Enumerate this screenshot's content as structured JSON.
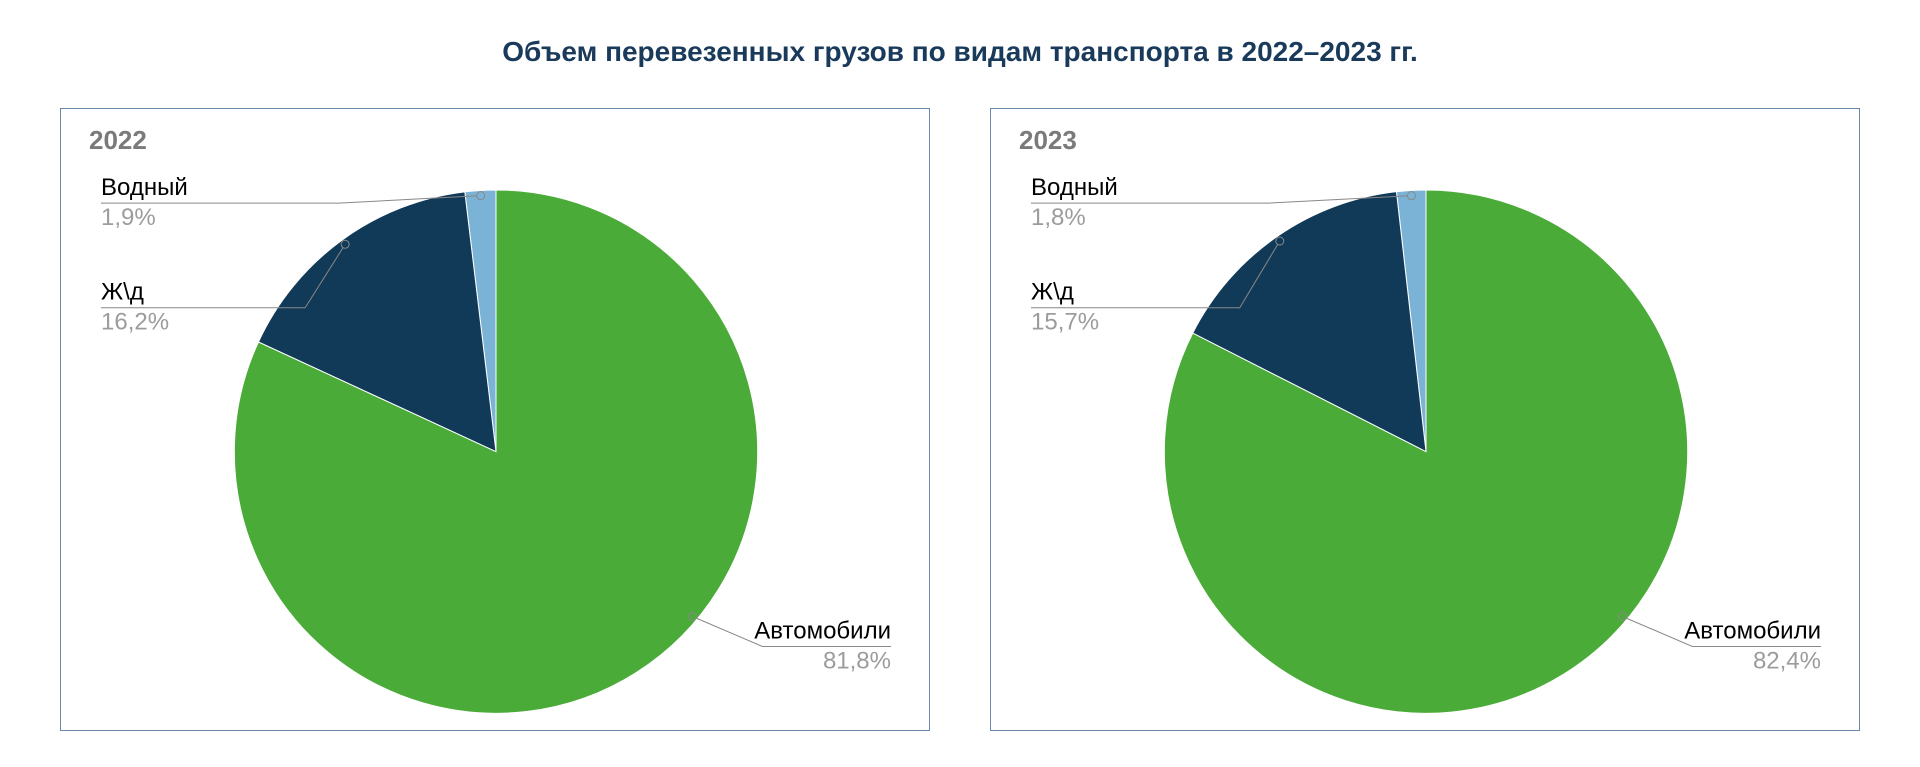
{
  "title": "Объем перевезенных грузов по видам транспорта в 2022–2023 гг.",
  "title_color": "#193a5a",
  "title_fontsize": 28,
  "panel_border_color": "#6a88a8",
  "panel_title_color": "#7a7a7a",
  "leader_stroke": "#888888",
  "leader_width": 1,
  "value_text_color": "#9c9c9c",
  "label_text_color": "#000000",
  "slice_stroke": "#ffffff",
  "slice_stroke_width": 1,
  "label_fontsize": 24,
  "pie_start_angle_deg": -90,
  "pie_direction": "ccw",
  "panels": [
    {
      "year": "2022",
      "slices": [
        {
          "label": "Водный",
          "value": 1.9,
          "display": "1,9%",
          "color": "#7bb3d6"
        },
        {
          "label": "Ж\\д",
          "value": 16.2,
          "display": "16,2%",
          "color": "#103a58"
        },
        {
          "label": "Автомобили",
          "value": 81.8,
          "display": "81,8%",
          "color": "#4aab38"
        }
      ]
    },
    {
      "year": "2023",
      "slices": [
        {
          "label": "Водный",
          "value": 1.8,
          "display": "1,8%",
          "color": "#7bb3d6"
        },
        {
          "label": "Ж\\д",
          "value": 15.7,
          "display": "15,7%",
          "color": "#103a58"
        },
        {
          "label": "Автомобили",
          "value": 82.4,
          "display": "82,4%",
          "color": "#4aab38"
        }
      ]
    }
  ]
}
